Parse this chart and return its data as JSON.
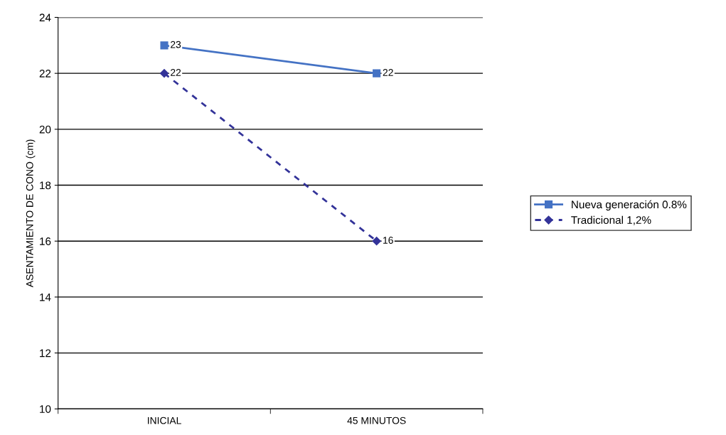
{
  "chart_data": {
    "type": "line",
    "ylabel": "ASENTAMIENTO DE CONO (cm)",
    "categories": [
      "INICIAL",
      "45 MINUTOS"
    ],
    "series": [
      {
        "name": "Nueva generación 0.8%",
        "color": "#4472c4",
        "values": [
          23,
          22
        ],
        "marker": "square",
        "line_style": "solid"
      },
      {
        "name": "Tradicional 1,2%",
        "color": "#333399",
        "values": [
          22,
          16
        ],
        "marker": "diamond",
        "line_style": "dashed"
      }
    ],
    "ylim": [
      10,
      24
    ],
    "yticks": [
      10,
      12,
      14,
      16,
      18,
      20,
      22,
      24
    ],
    "grid": "y",
    "legend": "right",
    "data_labels": true
  }
}
